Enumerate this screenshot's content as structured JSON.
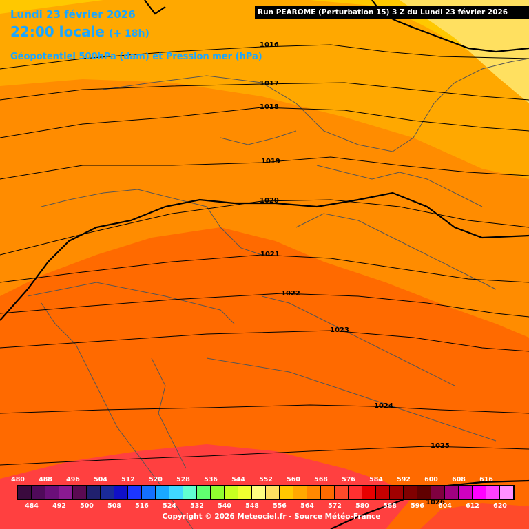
{
  "header": {
    "date": "Lundi 23 février 2026",
    "time": "22:00 locale",
    "lead": "(+ 18h)",
    "parameter": "Géopotentiel 500hPa (dam) et Pression mer (hPa)",
    "run": "Run PEAROME (Perturbation 15) 3 Z du Lundi 23 février 2026"
  },
  "isobars": [
    {
      "value": "1016"
    },
    {
      "value": "1017"
    },
    {
      "value": "1018"
    },
    {
      "value": "1019"
    },
    {
      "value": "1020"
    },
    {
      "value": "1021"
    },
    {
      "value": "1022"
    },
    {
      "value": "1023"
    },
    {
      "value": "1024"
    },
    {
      "value": "1025"
    },
    {
      "value": "1026"
    }
  ],
  "colorbar": {
    "labels_top": [
      "480",
      "488",
      "496",
      "504",
      "512",
      "520",
      "528",
      "536",
      "544",
      "552",
      "560",
      "568",
      "576",
      "584",
      "592",
      "600",
      "608",
      "616"
    ],
    "labels_bottom": [
      "484",
      "492",
      "500",
      "508",
      "516",
      "524",
      "532",
      "540",
      "548",
      "556",
      "564",
      "572",
      "580",
      "588",
      "596",
      "604",
      "612",
      "620"
    ],
    "colors": [
      "#3a0a3e",
      "#4f0a5a",
      "#6b0f7a",
      "#8a1a92",
      "#5a0a52",
      "#20206e",
      "#1a2a9a",
      "#1010c8",
      "#1c36ff",
      "#1470ff",
      "#1aa8ff",
      "#40d8ff",
      "#60ffd0",
      "#60ff70",
      "#90ff30",
      "#c8ff20",
      "#f0ff30",
      "#ffff80",
      "#ffe060",
      "#ffc800",
      "#ffa800",
      "#ff8800",
      "#ff6a00",
      "#ff4a2a",
      "#ff3030",
      "#e80000",
      "#c40000",
      "#a00000",
      "#800000",
      "#600000",
      "#800040",
      "#a00080",
      "#d000c0",
      "#ff00ff",
      "#ff40ff",
      "#ff90ff"
    ]
  },
  "copyright": "Copyright © 2026 Meteociel.fr - Source Météo-France"
}
